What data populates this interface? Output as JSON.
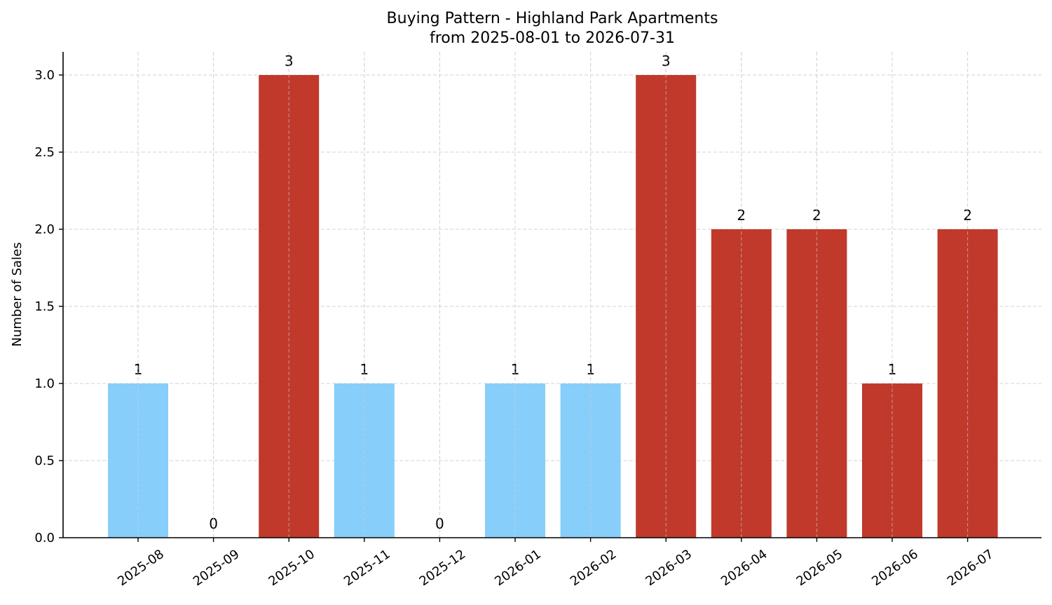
{
  "chart_data": {
    "type": "bar",
    "title": "Buying Pattern - Highland Park Apartments",
    "subtitle": "from 2025-08-01 to 2026-07-31",
    "xlabel": "",
    "ylabel": "Number of Sales",
    "categories": [
      "2025-08",
      "2025-09",
      "2025-10",
      "2025-11",
      "2025-12",
      "2026-01",
      "2026-02",
      "2026-03",
      "2026-04",
      "2026-05",
      "2026-06",
      "2026-07"
    ],
    "values": [
      1,
      0,
      3,
      1,
      0,
      1,
      1,
      3,
      2,
      2,
      1,
      2
    ],
    "bar_colors": [
      "#87cefa",
      "#87cefa",
      "#c0392b",
      "#87cefa",
      "#87cefa",
      "#87cefa",
      "#87cefa",
      "#c0392b",
      "#c0392b",
      "#c0392b",
      "#c0392b",
      "#c0392b"
    ],
    "data_labels": [
      "1",
      "0",
      "3",
      "1",
      "0",
      "1",
      "1",
      "3",
      "2",
      "2",
      "1",
      "2"
    ],
    "yticks": [
      0.0,
      0.5,
      1.0,
      1.5,
      2.0,
      2.5,
      3.0
    ],
    "ytick_labels": [
      "0.0",
      "0.5",
      "1.0",
      "1.5",
      "2.0",
      "2.5",
      "3.0"
    ],
    "ylim": [
      0,
      3.15
    ],
    "grid": true,
    "legend": "none"
  }
}
